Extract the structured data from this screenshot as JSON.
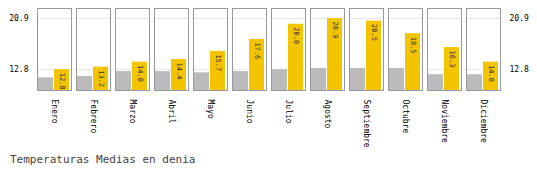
{
  "chart_data": {
    "type": "bar",
    "title": "Temperaturas Medias en denia",
    "categories": [
      "Enero",
      "Febrero",
      "Marzo",
      "Abril",
      "Mayo",
      "Junio",
      "Julio",
      "Agosto",
      "Septiembre",
      "Octubre",
      "Noviembre",
      "Diciembre"
    ],
    "series": [
      {
        "color": "#BBBBBB",
        "values": [
          11.5,
          11.7,
          12.5,
          12.5,
          12.3,
          12.5,
          12.8,
          13.0,
          13.0,
          13.0,
          12.0,
          12.0
        ]
      },
      {
        "color": "#F5C400",
        "values": [
          12.8,
          13.2,
          14.0,
          14.4,
          15.7,
          17.6,
          20.0,
          20.9,
          20.5,
          18.5,
          16.3,
          14.0
        ],
        "data_labels": true,
        "value_labels": [
          "12.8",
          "13.2",
          "14.0",
          "14.4",
          "15.7",
          "17.6",
          "20.0",
          "20.9",
          "20.5",
          "18.5",
          "16.3",
          "14.0"
        ]
      }
    ],
    "ylim": [
      9.5,
      22.5
    ],
    "yticks": [
      12.8,
      20.9
    ],
    "grid": true
  }
}
